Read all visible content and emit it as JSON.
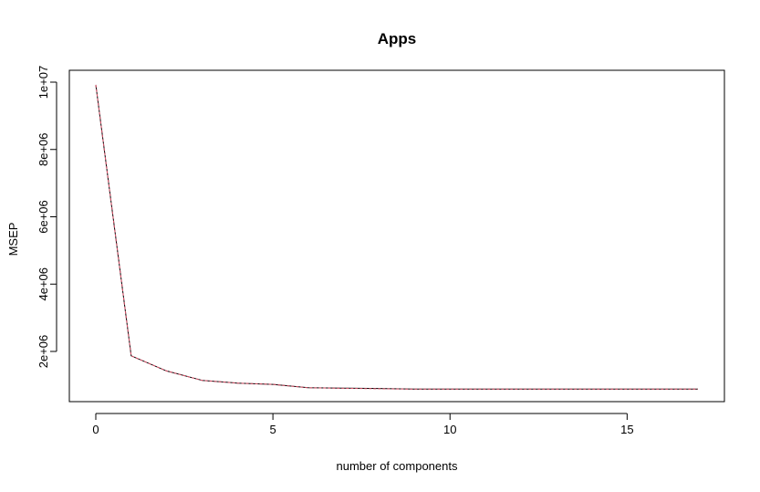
{
  "chart_data": {
    "type": "line",
    "title": "Apps",
    "xlabel": "number of components",
    "ylabel": "MSEP",
    "xlim": [
      0,
      17
    ],
    "ylim": [
      800000,
      10000000
    ],
    "xticks": [
      0,
      5,
      10,
      15
    ],
    "xtick_labels": [
      "0",
      "5",
      "10",
      "15"
    ],
    "yticks": [
      2000000,
      4000000,
      6000000,
      8000000,
      10000000
    ],
    "ytick_labels": [
      "2e+06",
      "4e+06",
      "6e+06",
      "8e+06",
      "1e+07"
    ],
    "grid": false,
    "series": [
      {
        "color": "#000000",
        "dash": "solid",
        "x": [
          0,
          1,
          2,
          3,
          4,
          5,
          6,
          7,
          8,
          9,
          10,
          11,
          12,
          13,
          14,
          15,
          16,
          17
        ],
        "values": [
          9920000,
          1870000,
          1420000,
          1140000,
          1060000,
          1020000,
          920000,
          910000,
          900000,
          880000,
          880000,
          880000,
          880000,
          880000,
          880000,
          880000,
          880000,
          880000
        ]
      },
      {
        "color": "#df536b",
        "dash": "dashed",
        "x": [
          0,
          1,
          2,
          3,
          4,
          5,
          6,
          7,
          8,
          9,
          10,
          11,
          12,
          13,
          14,
          15,
          16,
          17
        ],
        "values": [
          9920000,
          1870000,
          1420000,
          1140000,
          1060000,
          1020000,
          920000,
          905000,
          890000,
          880000,
          880000,
          880000,
          880000,
          880000,
          880000,
          880000,
          880000,
          880000
        ]
      }
    ]
  }
}
